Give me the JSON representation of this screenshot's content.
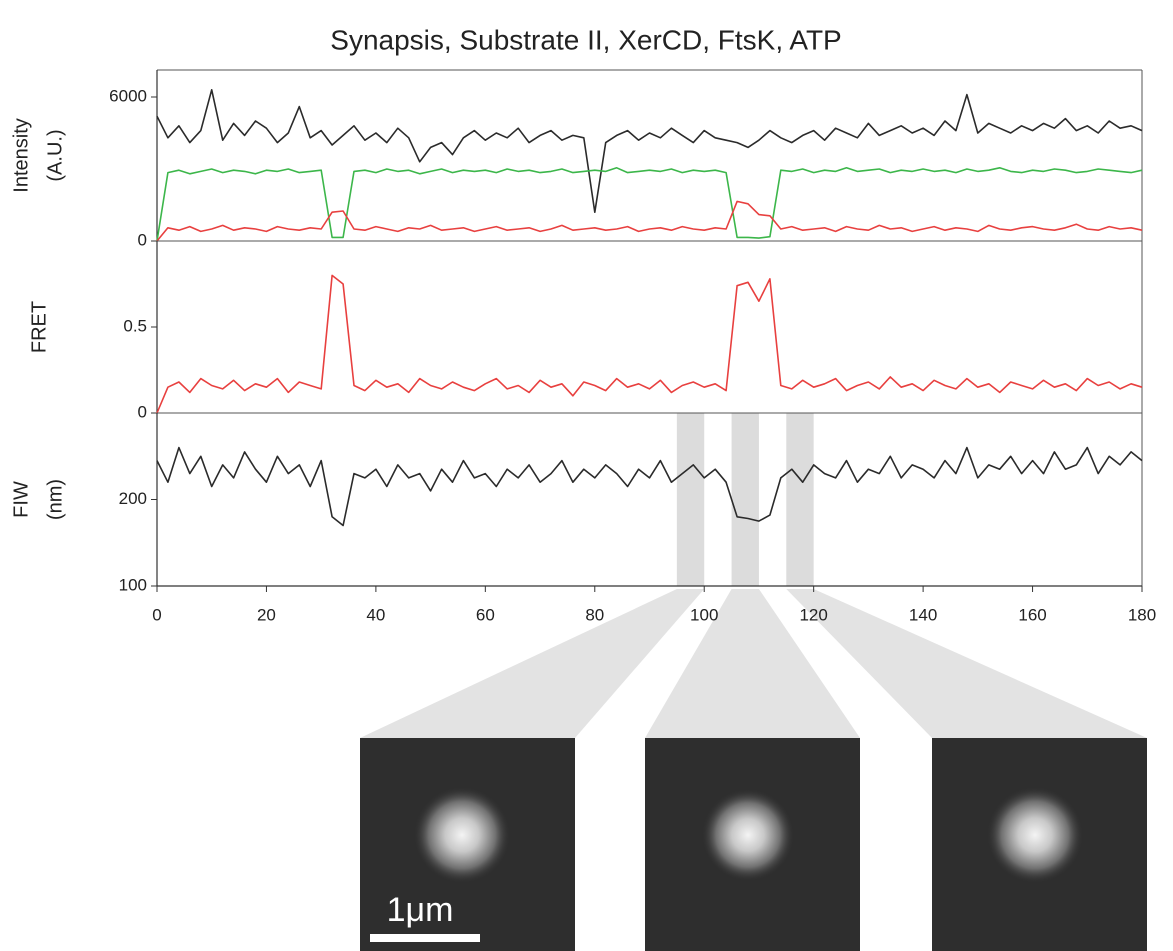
{
  "chart_data": [
    {
      "type": "line",
      "title": "Synapsis, Substrate II, XerCD, FtsK, ATP",
      "ylabel": [
        "Intensity",
        "(A.U.)"
      ],
      "x": [
        0,
        2,
        4,
        6,
        8,
        10,
        12,
        14,
        16,
        18,
        20,
        22,
        24,
        26,
        28,
        30,
        32,
        34,
        36,
        38,
        40,
        42,
        44,
        46,
        48,
        50,
        52,
        54,
        56,
        58,
        60,
        62,
        64,
        66,
        68,
        70,
        72,
        74,
        76,
        78,
        80,
        82,
        84,
        86,
        88,
        90,
        92,
        94,
        96,
        98,
        100,
        102,
        104,
        106,
        108,
        110,
        112,
        114,
        116,
        118,
        120,
        122,
        124,
        126,
        128,
        130,
        132,
        134,
        136,
        138,
        140,
        142,
        144,
        146,
        148,
        150,
        152,
        154,
        156,
        158,
        160,
        162,
        164,
        166,
        168,
        170,
        172,
        174,
        176,
        178,
        180
      ],
      "xlim": [
        0,
        180
      ],
      "ylim": [
        0,
        7125
      ],
      "yticks": [
        0,
        6000
      ],
      "series": [
        {
          "color": "#2b2b2b",
          "values": [
            5200,
            4300,
            4800,
            4100,
            4600,
            6300,
            4200,
            4900,
            4400,
            5000,
            4700,
            4100,
            4500,
            5600,
            4300,
            4600,
            4000,
            4400,
            4800,
            4200,
            4500,
            4100,
            4700,
            4300,
            3300,
            3900,
            4100,
            3600,
            4300,
            4600,
            4200,
            4500,
            4300,
            4700,
            4100,
            4400,
            4600,
            4200,
            4400,
            4300,
            1200,
            4100,
            4400,
            4600,
            4200,
            4500,
            4300,
            4700,
            4400,
            4100,
            4600,
            4300,
            4200,
            4100,
            3900,
            4200,
            4600,
            4300,
            4100,
            4400,
            4600,
            4200,
            4700,
            4500,
            4300,
            4900,
            4400,
            4600,
            4800,
            4500,
            4700,
            4400,
            5000,
            4600,
            6100,
            4500,
            4900,
            4700,
            4500,
            4800,
            4600,
            4900,
            4700,
            5100,
            4600,
            4800,
            4500,
            5000,
            4700,
            4800,
            4600
          ]
        },
        {
          "color": "#3cb64a",
          "values": [
            0,
            2850,
            2950,
            2800,
            2900,
            3000,
            2850,
            2950,
            2900,
            2800,
            2950,
            2900,
            3000,
            2850,
            2900,
            2950,
            150,
            150,
            2900,
            2950,
            2850,
            3000,
            2900,
            2950,
            2800,
            2900,
            3000,
            2850,
            2950,
            2900,
            2950,
            2850,
            3000,
            2900,
            2950,
            2850,
            2900,
            3000,
            2850,
            2900,
            2950,
            2900,
            3050,
            2850,
            2900,
            2950,
            2900,
            3000,
            2850,
            2950,
            2900,
            2950,
            2850,
            150,
            150,
            120,
            180,
            2950,
            2900,
            3000,
            2850,
            2950,
            2900,
            3050,
            2900,
            2950,
            3000,
            2850,
            2950,
            2900,
            3000,
            2900,
            2950,
            2850,
            3000,
            2900,
            2950,
            3050,
            2900,
            2850,
            2950,
            2900,
            3000,
            2950,
            2850,
            2900,
            3000,
            2950,
            2900,
            2850,
            2950
          ]
        },
        {
          "color": "#e8403f",
          "values": [
            0,
            550,
            450,
            600,
            400,
            500,
            650,
            450,
            550,
            500,
            400,
            600,
            500,
            450,
            550,
            500,
            1200,
            1250,
            500,
            450,
            600,
            500,
            400,
            550,
            500,
            650,
            450,
            500,
            550,
            400,
            500,
            600,
            450,
            500,
            550,
            400,
            500,
            650,
            450,
            500,
            550,
            450,
            500,
            600,
            400,
            500,
            550,
            450,
            600,
            500,
            450,
            550,
            500,
            1650,
            1550,
            1100,
            1050,
            500,
            600,
            450,
            500,
            550,
            400,
            600,
            500,
            450,
            650,
            500,
            550,
            400,
            500,
            600,
            450,
            550,
            500,
            400,
            650,
            500,
            450,
            550,
            600,
            500,
            450,
            550,
            700,
            500,
            450,
            600,
            500,
            550,
            450
          ]
        }
      ]
    },
    {
      "type": "line",
      "ylabel": [
        "FRET"
      ],
      "x": [
        0,
        2,
        4,
        6,
        8,
        10,
        12,
        14,
        16,
        18,
        20,
        22,
        24,
        26,
        28,
        30,
        32,
        34,
        36,
        38,
        40,
        42,
        44,
        46,
        48,
        50,
        52,
        54,
        56,
        58,
        60,
        62,
        64,
        66,
        68,
        70,
        72,
        74,
        76,
        78,
        80,
        82,
        84,
        86,
        88,
        90,
        92,
        94,
        96,
        98,
        100,
        102,
        104,
        106,
        108,
        110,
        112,
        114,
        116,
        118,
        120,
        122,
        124,
        126,
        128,
        130,
        132,
        134,
        136,
        138,
        140,
        142,
        144,
        146,
        148,
        150,
        152,
        154,
        156,
        158,
        160,
        162,
        164,
        166,
        168,
        170,
        172,
        174,
        176,
        178,
        180
      ],
      "xlim": [
        0,
        180
      ],
      "ylim": [
        0,
        1
      ],
      "yticks": [
        0,
        0.5
      ],
      "series": [
        {
          "color": "#e8403f",
          "values": [
            0,
            0.15,
            0.18,
            0.12,
            0.2,
            0.16,
            0.14,
            0.19,
            0.13,
            0.17,
            0.15,
            0.2,
            0.12,
            0.18,
            0.16,
            0.14,
            0.8,
            0.75,
            0.16,
            0.13,
            0.19,
            0.15,
            0.17,
            0.12,
            0.2,
            0.16,
            0.14,
            0.18,
            0.15,
            0.13,
            0.17,
            0.2,
            0.14,
            0.16,
            0.12,
            0.19,
            0.15,
            0.17,
            0.1,
            0.18,
            0.16,
            0.13,
            0.2,
            0.15,
            0.17,
            0.14,
            0.19,
            0.12,
            0.16,
            0.18,
            0.15,
            0.17,
            0.13,
            0.74,
            0.76,
            0.65,
            0.78,
            0.16,
            0.14,
            0.19,
            0.15,
            0.17,
            0.2,
            0.13,
            0.16,
            0.18,
            0.14,
            0.21,
            0.15,
            0.17,
            0.13,
            0.19,
            0.16,
            0.14,
            0.2,
            0.15,
            0.17,
            0.12,
            0.18,
            0.16,
            0.14,
            0.19,
            0.15,
            0.17,
            0.13,
            0.2,
            0.16,
            0.18,
            0.14,
            0.17,
            0.15
          ]
        }
      ]
    },
    {
      "type": "line",
      "ylabel": [
        "FIW",
        "(nm)"
      ],
      "x": [
        0,
        2,
        4,
        6,
        8,
        10,
        12,
        14,
        16,
        18,
        20,
        22,
        24,
        26,
        28,
        30,
        32,
        34,
        36,
        38,
        40,
        42,
        44,
        46,
        48,
        50,
        52,
        54,
        56,
        58,
        60,
        62,
        64,
        66,
        68,
        70,
        72,
        74,
        76,
        78,
        80,
        82,
        84,
        86,
        88,
        90,
        92,
        94,
        96,
        98,
        100,
        102,
        104,
        106,
        108,
        110,
        112,
        114,
        116,
        118,
        120,
        122,
        124,
        126,
        128,
        130,
        132,
        134,
        136,
        138,
        140,
        142,
        144,
        146,
        148,
        150,
        152,
        154,
        156,
        158,
        160,
        162,
        164,
        166,
        168,
        170,
        172,
        174,
        176,
        178,
        180
      ],
      "xlim": [
        0,
        180
      ],
      "ylim": [
        100,
        300
      ],
      "yticks": [
        100,
        200
      ],
      "xticks": [
        0,
        20,
        40,
        60,
        80,
        100,
        120,
        140,
        160,
        180
      ],
      "highlights": [
        [
          95,
          100
        ],
        [
          105,
          110
        ],
        [
          115,
          120
        ]
      ],
      "series": [
        {
          "color": "#2b2b2b",
          "values": [
            245,
            220,
            260,
            230,
            250,
            215,
            240,
            225,
            255,
            235,
            220,
            250,
            230,
            240,
            215,
            245,
            180,
            170,
            230,
            225,
            235,
            215,
            240,
            225,
            230,
            210,
            235,
            220,
            245,
            225,
            230,
            215,
            235,
            225,
            240,
            220,
            230,
            245,
            220,
            235,
            225,
            240,
            230,
            215,
            235,
            225,
            245,
            220,
            230,
            240,
            225,
            235,
            220,
            180,
            178,
            175,
            182,
            225,
            235,
            220,
            240,
            230,
            225,
            245,
            220,
            235,
            230,
            250,
            225,
            240,
            235,
            225,
            245,
            230,
            260,
            225,
            240,
            235,
            250,
            230,
            245,
            230,
            255,
            235,
            240,
            260,
            230,
            250,
            240,
            255,
            245
          ]
        }
      ]
    }
  ],
  "scale_bar": "1μm"
}
